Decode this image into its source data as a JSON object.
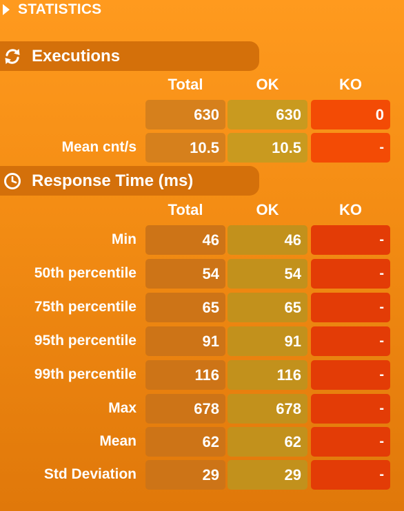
{
  "header": {
    "title": "STATISTICS"
  },
  "executions": {
    "title": "Executions",
    "columns": [
      "Total",
      "OK",
      "KO"
    ],
    "rows": [
      {
        "label": "",
        "total": "630",
        "ok": "630",
        "ko": "0"
      },
      {
        "label": "Mean cnt/s",
        "total": "10.5",
        "ok": "10.5",
        "ko": "-"
      }
    ]
  },
  "response_time": {
    "title": "Response Time (ms)",
    "columns": [
      "Total",
      "OK",
      "KO"
    ],
    "rows": [
      {
        "label": "Min",
        "total": "46",
        "ok": "46",
        "ko": "-"
      },
      {
        "label": "50th percentile",
        "total": "54",
        "ok": "54",
        "ko": "-"
      },
      {
        "label": "75th percentile",
        "total": "65",
        "ok": "65",
        "ko": "-"
      },
      {
        "label": "95th percentile",
        "total": "91",
        "ok": "91",
        "ko": "-"
      },
      {
        "label": "99th percentile",
        "total": "116",
        "ok": "116",
        "ko": "-"
      },
      {
        "label": "Max",
        "total": "678",
        "ok": "678",
        "ko": "-"
      },
      {
        "label": "Mean",
        "total": "62",
        "ok": "62",
        "ko": "-"
      },
      {
        "label": "Std Deviation",
        "total": "29",
        "ok": "29",
        "ko": "-"
      }
    ]
  },
  "colors": {
    "background": "#f48d14",
    "section_bar": "#d4700a",
    "total_cell": "#cd7417",
    "ok_cell": "#c2911c",
    "ko_cell": "#e33c06"
  },
  "icons": {
    "header": "triangle-right-icon",
    "executions": "refresh-icon",
    "response_time": "clock-icon"
  }
}
